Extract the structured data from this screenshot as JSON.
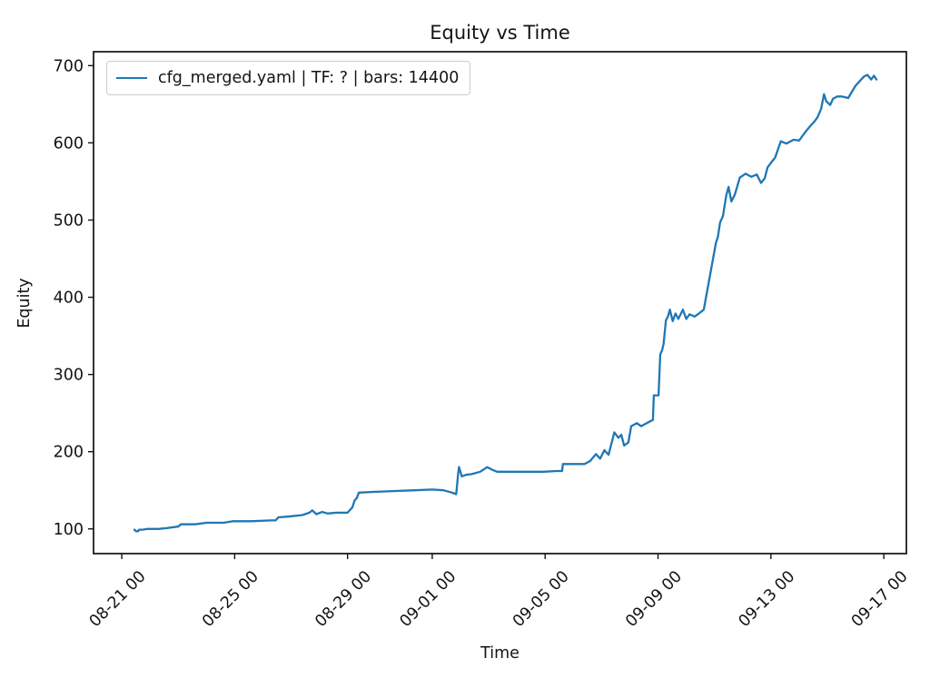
{
  "figure": {
    "title": "Equity vs Time",
    "background_color": "#ffffff",
    "text_color": "#141414"
  },
  "legend": {
    "entry_label": "cfg_merged.yaml | TF: ? | bars: 14400",
    "position": "upper left",
    "border_color": "#cccccc"
  },
  "chart_data": {
    "type": "line",
    "title": "Equity vs Time",
    "xlabel": "Time",
    "ylabel": "Equity",
    "grid": false,
    "line_color": "#1f77b4",
    "line_width": 2.3,
    "legend_entries": [
      "cfg_merged.yaml | TF: ? | bars: 14400"
    ],
    "x_unit": "days since 08-21 00:00",
    "xlim": [
      -1.0,
      27.8
    ],
    "ylim": [
      68,
      718
    ],
    "x_ticks": [
      {
        "pos": 0,
        "label": "08-21 00"
      },
      {
        "pos": 4,
        "label": "08-25 00"
      },
      {
        "pos": 8,
        "label": "08-29 00"
      },
      {
        "pos": 11,
        "label": "09-01 00"
      },
      {
        "pos": 15,
        "label": "09-05 00"
      },
      {
        "pos": 19,
        "label": "09-09 00"
      },
      {
        "pos": 23,
        "label": "09-13 00"
      },
      {
        "pos": 27,
        "label": "09-17 00"
      }
    ],
    "y_ticks": [
      100,
      200,
      300,
      400,
      500,
      600,
      700
    ],
    "series": [
      {
        "name": "cfg_merged.yaml | TF: ? | bars: 14400",
        "color": "#1f77b4",
        "points": [
          [
            0.45,
            99
          ],
          [
            0.5,
            97
          ],
          [
            0.58,
            97
          ],
          [
            0.62,
            99
          ],
          [
            0.75,
            99
          ],
          [
            0.9,
            100
          ],
          [
            1.3,
            100
          ],
          [
            1.6,
            101
          ],
          [
            2.0,
            103
          ],
          [
            2.1,
            106
          ],
          [
            2.6,
            106
          ],
          [
            3.0,
            108
          ],
          [
            3.6,
            108
          ],
          [
            3.95,
            110
          ],
          [
            4.6,
            110
          ],
          [
            5.3,
            111
          ],
          [
            5.45,
            111
          ],
          [
            5.55,
            115
          ],
          [
            5.9,
            116
          ],
          [
            6.4,
            118
          ],
          [
            6.65,
            121
          ],
          [
            6.75,
            124
          ],
          [
            6.9,
            119
          ],
          [
            7.1,
            122
          ],
          [
            7.3,
            120
          ],
          [
            7.6,
            121
          ],
          [
            8.0,
            121
          ],
          [
            8.17,
            128
          ],
          [
            8.25,
            137
          ],
          [
            8.33,
            140
          ],
          [
            8.4,
            147
          ],
          [
            9.0,
            148
          ],
          [
            9.6,
            149
          ],
          [
            10.4,
            150
          ],
          [
            11.0,
            151
          ],
          [
            11.4,
            150
          ],
          [
            11.7,
            147
          ],
          [
            11.85,
            145
          ],
          [
            11.92,
            172
          ],
          [
            11.95,
            180
          ],
          [
            12.05,
            168
          ],
          [
            12.2,
            170
          ],
          [
            12.4,
            171
          ],
          [
            12.7,
            174
          ],
          [
            12.95,
            180
          ],
          [
            13.1,
            177
          ],
          [
            13.3,
            174
          ],
          [
            14.0,
            174
          ],
          [
            14.95,
            174
          ],
          [
            15.4,
            175
          ],
          [
            15.6,
            175
          ],
          [
            15.63,
            184
          ],
          [
            16.0,
            184
          ],
          [
            16.4,
            184
          ],
          [
            16.6,
            188
          ],
          [
            16.8,
            197
          ],
          [
            16.95,
            191
          ],
          [
            17.1,
            202
          ],
          [
            17.25,
            196
          ],
          [
            17.45,
            225
          ],
          [
            17.6,
            218
          ],
          [
            17.7,
            222
          ],
          [
            17.8,
            208
          ],
          [
            17.95,
            212
          ],
          [
            18.05,
            233
          ],
          [
            18.25,
            237
          ],
          [
            18.4,
            233
          ],
          [
            18.6,
            237
          ],
          [
            18.75,
            240
          ],
          [
            18.82,
            241
          ],
          [
            18.85,
            273
          ],
          [
            19.02,
            273
          ],
          [
            19.08,
            326
          ],
          [
            19.15,
            332
          ],
          [
            19.2,
            340
          ],
          [
            19.28,
            370
          ],
          [
            19.35,
            375
          ],
          [
            19.42,
            384
          ],
          [
            19.52,
            369
          ],
          [
            19.62,
            379
          ],
          [
            19.72,
            372
          ],
          [
            19.88,
            384
          ],
          [
            20.0,
            372
          ],
          [
            20.12,
            378
          ],
          [
            20.3,
            375
          ],
          [
            20.45,
            379
          ],
          [
            20.62,
            384
          ],
          [
            20.8,
            420
          ],
          [
            21.05,
            470
          ],
          [
            21.12,
            478
          ],
          [
            21.2,
            497
          ],
          [
            21.3,
            505
          ],
          [
            21.42,
            532
          ],
          [
            21.5,
            543
          ],
          [
            21.6,
            524
          ],
          [
            21.72,
            533
          ],
          [
            21.9,
            555
          ],
          [
            22.1,
            560
          ],
          [
            22.3,
            556
          ],
          [
            22.5,
            559
          ],
          [
            22.65,
            548
          ],
          [
            22.78,
            554
          ],
          [
            22.88,
            568
          ],
          [
            23.0,
            574
          ],
          [
            23.15,
            581
          ],
          [
            23.35,
            602
          ],
          [
            23.55,
            599
          ],
          [
            23.8,
            604
          ],
          [
            24.0,
            603
          ],
          [
            24.22,
            614
          ],
          [
            24.4,
            622
          ],
          [
            24.55,
            628
          ],
          [
            24.65,
            633
          ],
          [
            24.78,
            644
          ],
          [
            24.88,
            663
          ],
          [
            24.96,
            654
          ],
          [
            25.1,
            649
          ],
          [
            25.2,
            657
          ],
          [
            25.35,
            660
          ],
          [
            25.5,
            660
          ],
          [
            25.74,
            658
          ],
          [
            25.85,
            665
          ],
          [
            26.0,
            674
          ],
          [
            26.15,
            680
          ],
          [
            26.3,
            686
          ],
          [
            26.42,
            688
          ],
          [
            26.55,
            682
          ],
          [
            26.65,
            687
          ],
          [
            26.74,
            682
          ]
        ]
      }
    ]
  }
}
